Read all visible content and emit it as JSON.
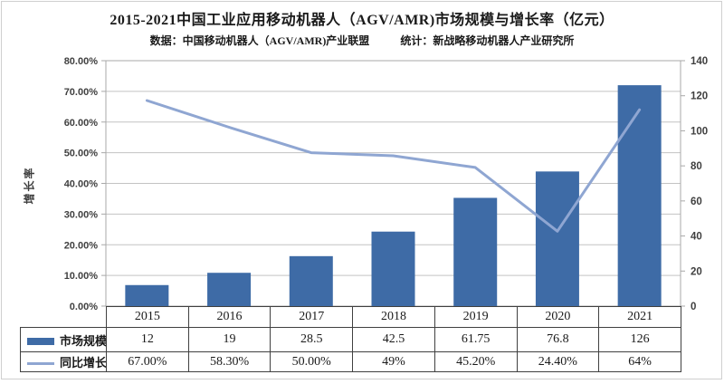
{
  "header": {
    "title": "2015-2021中国工业应用移动机器人（AGV/AMR)市场规模与增长率（亿元）",
    "subtitle_left": "数据：中国移动机器人（AGV/AMR)产业联盟",
    "subtitle_right": "统计：新战略移动机器人产业研究所"
  },
  "colors": {
    "bar": "#3e6ba6",
    "line": "#8fa6d2",
    "grid": "#c3c3c3",
    "frame": "#a8a8a8",
    "tick_text": "#3f3f3f",
    "table_border": "#404040"
  },
  "chart_data": {
    "type": "combo",
    "categories": [
      "2015",
      "2016",
      "2017",
      "2018",
      "2019",
      "2020",
      "2021"
    ],
    "series": [
      {
        "name": "市场规模",
        "chart": "bar",
        "axis": "right",
        "values": [
          12,
          19,
          28.5,
          42.5,
          61.75,
          76.8,
          126
        ],
        "display": [
          "12",
          "19",
          "28.5",
          "42.5",
          "61.75",
          "76.8",
          "126"
        ],
        "color": "#3e6ba6"
      },
      {
        "name": "同比增长率",
        "chart": "line",
        "axis": "left",
        "values": [
          67.0,
          58.3,
          50.0,
          49.0,
          45.2,
          24.4,
          64.0
        ],
        "display": [
          "67.00%",
          "58.30%",
          "50.00%",
          "49%",
          "45.20%",
          "24.40%",
          "64%"
        ],
        "color": "#8fa6d2"
      }
    ],
    "left_axis": {
      "title": "增长率",
      "min": 0,
      "max": 80,
      "tick_step": 10,
      "tick_labels": [
        "0.00%",
        "10.00%",
        "20.00%",
        "30.00%",
        "40.00%",
        "50.00%",
        "60.00%",
        "70.00%",
        "80.00%"
      ]
    },
    "right_axis": {
      "min": 0,
      "max": 140,
      "tick_step": 20,
      "tick_labels": [
        "0",
        "20",
        "40",
        "60",
        "80",
        "100",
        "120",
        "140"
      ]
    },
    "grid": true,
    "legend_position": "bottom-table-left"
  }
}
